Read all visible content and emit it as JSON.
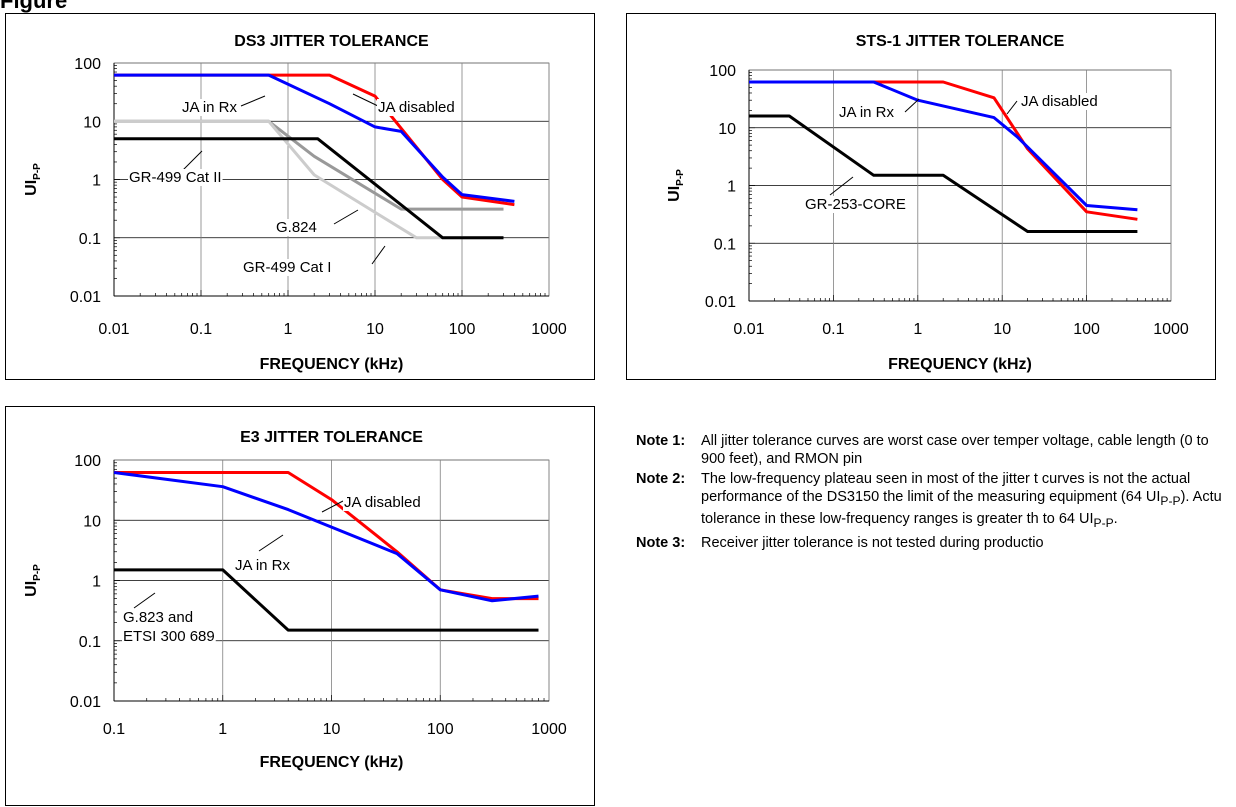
{
  "figure_heading": "Figure",
  "chart_data": [
    {
      "id": "ds3",
      "type": "line",
      "title": "DS3 JITTER TOLERANCE",
      "xlabel": "FREQUENCY (kHz)",
      "ylabel": "UIP-P",
      "ylabel_main": "UI",
      "ylabel_sub": "P-P",
      "x_scale": "log",
      "y_scale": "log",
      "xlim": [
        0.01,
        1000
      ],
      "ylim": [
        0.01,
        100
      ],
      "x_ticks": [
        "0.01",
        "0.1",
        "1",
        "10",
        "100",
        "1000"
      ],
      "y_ticks": [
        "100",
        "10",
        "1",
        "0.1",
        "0.01"
      ],
      "grid": true,
      "series": [
        {
          "color": "#999999",
          "x": [
            0.01,
            0.6,
            2,
            20,
            300
          ],
          "y": [
            10,
            10,
            2.5,
            0.31,
            0.31
          ]
        },
        {
          "color": "#cccccc",
          "x": [
            0.01,
            0.6,
            2,
            30,
            300
          ],
          "y": [
            10,
            10,
            1.2,
            0.1,
            0.1
          ]
        },
        {
          "color": "#000000",
          "x": [
            0.01,
            2.2,
            60,
            300
          ],
          "y": [
            5,
            5,
            0.1,
            0.1
          ]
        },
        {
          "color": "#ff0000",
          "x": [
            0.01,
            3,
            10,
            60,
            100,
            400
          ],
          "y": [
            62,
            62,
            27,
            1,
            0.5,
            0.37
          ]
        },
        {
          "color": "#0000ff",
          "x": [
            0.01,
            0.6,
            3,
            10,
            20,
            60,
            100,
            400
          ],
          "y": [
            62,
            62,
            20,
            8,
            6.7,
            1.1,
            0.55,
            0.42
          ]
        }
      ],
      "annotations": [
        {
          "text": "JA in Rx"
        },
        {
          "text": "JA disabled"
        },
        {
          "text": "GR-499 Cat II"
        },
        {
          "text": "G.824"
        },
        {
          "text": "GR-499 Cat I"
        }
      ]
    },
    {
      "id": "sts1",
      "type": "line",
      "title": "STS-1 JITTER TOLERANCE",
      "xlabel": "FREQUENCY (kHz)",
      "ylabel": "UIP-P",
      "ylabel_main": "UI",
      "ylabel_sub": "P-P",
      "x_scale": "log",
      "y_scale": "log",
      "xlim": [
        0.01,
        1000
      ],
      "ylim": [
        0.01,
        100
      ],
      "x_ticks": [
        "0.01",
        "0.1",
        "1",
        "10",
        "100",
        "1000"
      ],
      "y_ticks": [
        "100",
        "10",
        "1",
        "0.1",
        "0.01"
      ],
      "grid": true,
      "series": [
        {
          "color": "#000000",
          "x": [
            0.01,
            0.03,
            0.3,
            2,
            20,
            400
          ],
          "y": [
            16,
            16,
            1.5,
            1.5,
            0.16,
            0.16
          ]
        },
        {
          "color": "#ff0000",
          "x": [
            0.01,
            0.3,
            2,
            8,
            20,
            100,
            400
          ],
          "y": [
            62,
            62,
            62,
            33,
            4.3,
            0.35,
            0.26
          ]
        },
        {
          "color": "#0000ff",
          "x": [
            0.01,
            0.3,
            1,
            8,
            15,
            100,
            400
          ],
          "y": [
            62,
            62,
            30,
            15,
            7,
            0.45,
            0.38
          ]
        }
      ],
      "annotations": [
        {
          "text": "JA disabled"
        },
        {
          "text": "JA in Rx"
        },
        {
          "text": "GR-253-CORE"
        }
      ]
    },
    {
      "id": "e3",
      "type": "line",
      "title": "E3 JITTER TOLERANCE",
      "xlabel": "FREQUENCY (kHz)",
      "ylabel": "UIP-P",
      "ylabel_main": "UI",
      "ylabel_sub": "P-P",
      "x_scale": "log",
      "y_scale": "log",
      "xlim": [
        0.1,
        1000
      ],
      "ylim": [
        0.01,
        100
      ],
      "x_ticks": [
        "0.1",
        "1",
        "10",
        "100",
        "1000"
      ],
      "y_ticks": [
        "100",
        "10",
        "1",
        "0.1",
        "0.01"
      ],
      "grid": true,
      "series": [
        {
          "color": "#000000",
          "x": [
            0.1,
            1,
            4,
            800
          ],
          "y": [
            1.5,
            1.5,
            0.15,
            0.15
          ]
        },
        {
          "color": "#ff0000",
          "x": [
            0.1,
            4,
            10,
            40,
            100,
            300,
            800
          ],
          "y": [
            62,
            62,
            22,
            3,
            0.7,
            0.5,
            0.5
          ]
        },
        {
          "color": "#0000ff",
          "x": [
            0.1,
            1,
            4,
            40,
            100,
            300,
            800
          ],
          "y": [
            62,
            36,
            15,
            2.8,
            0.7,
            0.46,
            0.55
          ]
        }
      ],
      "annotations": [
        {
          "text": "JA disabled"
        },
        {
          "text": "JA in Rx"
        },
        {
          "text": "G.823 and"
        },
        {
          "text": "ETSI 300 689"
        }
      ]
    }
  ],
  "notes": [
    {
      "label": "Note 1:",
      "text": "All jitter tolerance curves are worst case over temper voltage, cable length (0 to 900 feet), and RMON pin"
    },
    {
      "label": "Note 2:",
      "text_before": "The low-frequency plateau seen in most of the jitter t curves is not the actual performance of the DS3150 the limit of the measuring equipment (64 UI",
      "sub1": "P-P",
      "text_mid": "). Actu tolerance in these low-frequency ranges is greater th to 64 UI",
      "sub2": "P-P",
      "text_after": "."
    },
    {
      "label": "Note 3:",
      "text": "Receiver jitter tolerance is not tested during productio"
    }
  ]
}
